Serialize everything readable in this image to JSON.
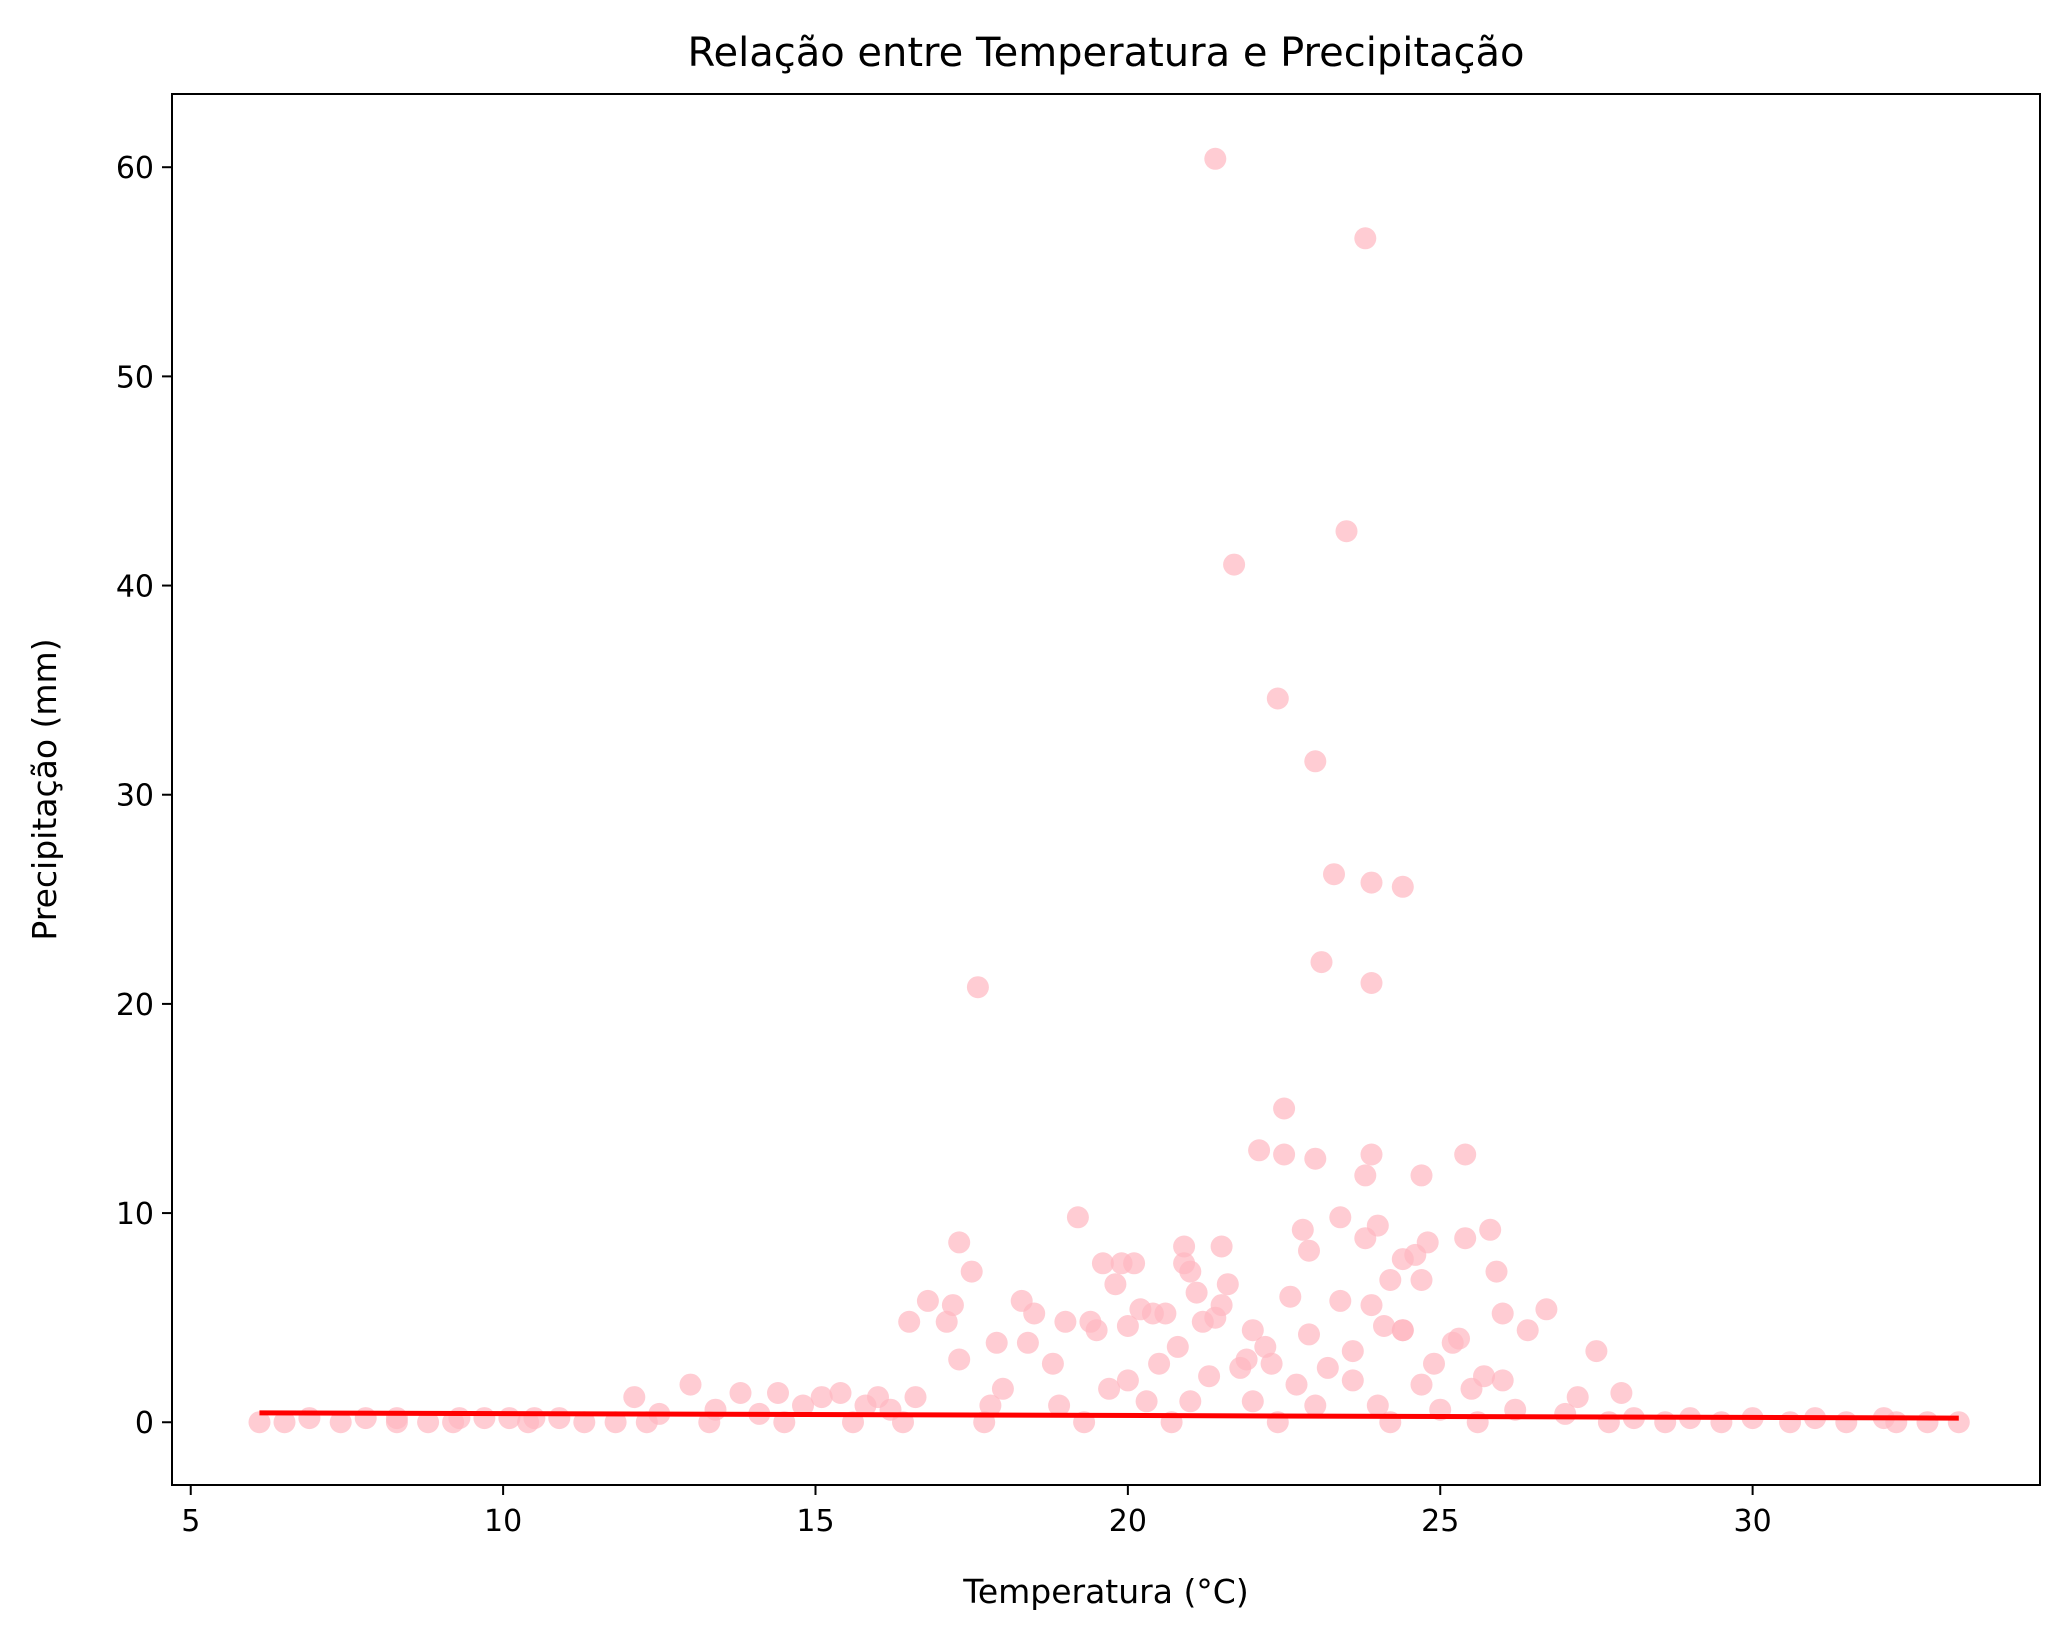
{
  "chart_data": {
    "type": "scatter",
    "title": "Relação entre Temperatura e Precipitação",
    "xlabel": "Temperatura (°C)",
    "ylabel": "Precipitação (mm)",
    "xlim": [
      4.7,
      34.6
    ],
    "ylim": [
      -3.0,
      63.5
    ],
    "xticks": [
      5,
      10,
      15,
      20,
      25,
      30
    ],
    "yticks": [
      0,
      10,
      20,
      30,
      40,
      50,
      60
    ],
    "grid": false,
    "legend": "none",
    "colors": {
      "points": "#ffb6c1",
      "trend": "#ff0000"
    },
    "series": [
      {
        "type": "scatter",
        "x": [
          21.4,
          23.8,
          23.5,
          21.7,
          22.4,
          23.0,
          23.3,
          23.9,
          24.4,
          23.1,
          23.9,
          17.6,
          22.5,
          22.1,
          22.5,
          23.0,
          23.9,
          25.4,
          23.8,
          24.7,
          19.2,
          23.4,
          22.8,
          24.0,
          25.8,
          23.8,
          24.8,
          17.3,
          22.9,
          25.4,
          20.9,
          21.5,
          24.6,
          19.6,
          19.9,
          20.1,
          24.4,
          20.9,
          21.0,
          17.5,
          25.9,
          24.7,
          24.2,
          19.8,
          21.6,
          21.1,
          22.6,
          16.8,
          18.3,
          17.2,
          23.9,
          23.4,
          21.5,
          26.0,
          26.7,
          18.5,
          16.5,
          17.1,
          24.4,
          20.6,
          20.4,
          21.2,
          20.2,
          21.4,
          19.4,
          20.0,
          26.4,
          25.3,
          22.0,
          24.4,
          24.1,
          22.9,
          19.0,
          19.5,
          23.6,
          17.9,
          20.8,
          22.2,
          18.4,
          27.5,
          17.3,
          25.2,
          26.0,
          21.9,
          13.0,
          20.5,
          22.3,
          24.9,
          23.2,
          21.8,
          18.8,
          25.7,
          27.2,
          12.1,
          27.9,
          13.8,
          14.4,
          15.4,
          15.1,
          16.0,
          16.6,
          20.0,
          18.0,
          21.3,
          23.6,
          24.7,
          19.7,
          22.7,
          15.8,
          14.8,
          13.4,
          25.5,
          6.9,
          7.8,
          8.3,
          9.3,
          9.7,
          10.1,
          10.5,
          10.9,
          12.5,
          14.1,
          16.2,
          17.8,
          18.9,
          20.3,
          21.0,
          22.0,
          23.0,
          24.0,
          25.0,
          26.2,
          27.0,
          28.1,
          29.0,
          30.0,
          31.0,
          32.1,
          33.3,
          6.1,
          6.5,
          7.4,
          8.3,
          8.8,
          9.2,
          10.4,
          11.3,
          11.8,
          12.3,
          13.3,
          14.5,
          15.6,
          16.4,
          17.7,
          19.3,
          20.7,
          22.4,
          24.2,
          25.6,
          27.7,
          28.6,
          29.5,
          30.6,
          31.5,
          32.3,
          32.8
        ],
        "y": [
          60.4,
          56.6,
          42.6,
          41.0,
          34.6,
          31.6,
          26.2,
          25.8,
          25.6,
          22.0,
          21.0,
          20.8,
          15.0,
          13.0,
          12.8,
          12.6,
          12.8,
          12.8,
          11.8,
          11.8,
          9.8,
          9.8,
          9.2,
          9.4,
          9.2,
          8.8,
          8.6,
          8.6,
          8.2,
          8.8,
          8.4,
          8.4,
          8.0,
          7.6,
          7.6,
          7.6,
          7.8,
          7.6,
          7.2,
          7.2,
          7.2,
          6.8,
          6.8,
          6.6,
          6.6,
          6.2,
          6.0,
          5.8,
          5.8,
          5.6,
          5.6,
          5.8,
          5.6,
          5.2,
          5.4,
          5.2,
          4.8,
          4.8,
          4.4,
          5.2,
          5.2,
          4.8,
          5.4,
          5.0,
          4.8,
          4.6,
          4.4,
          4.0,
          4.4,
          4.4,
          4.6,
          4.2,
          4.8,
          4.4,
          3.4,
          3.8,
          3.6,
          3.6,
          3.8,
          3.4,
          3.0,
          3.8,
          2.0,
          3.0,
          1.8,
          2.8,
          2.8,
          2.8,
          2.6,
          2.6,
          2.8,
          2.2,
          1.2,
          1.2,
          1.4,
          1.4,
          1.4,
          1.4,
          1.2,
          1.2,
          1.2,
          2.0,
          1.6,
          2.2,
          2.0,
          1.8,
          1.6,
          1.8,
          0.8,
          0.8,
          0.6,
          1.6,
          0.2,
          0.2,
          0.2,
          0.2,
          0.2,
          0.2,
          0.2,
          0.2,
          0.4,
          0.4,
          0.6,
          0.8,
          0.8,
          1.0,
          1.0,
          1.0,
          0.8,
          0.8,
          0.6,
          0.6,
          0.4,
          0.2,
          0.2,
          0.2,
          0.2,
          0.2,
          0.0,
          0.0,
          0.0,
          0.0,
          0.0,
          0.0,
          0.0,
          0.0,
          0.0,
          0.0,
          0.0,
          0.0,
          0.0,
          0.0,
          0.0,
          0.0,
          0.0,
          0.0,
          0.0,
          0.0,
          0.0,
          0.0,
          0.0,
          0.0,
          0.0,
          0.0,
          0.0,
          0.0
        ]
      },
      {
        "type": "line",
        "x": [
          6.1,
          33.3
        ],
        "y": [
          0.45,
          0.2
        ]
      }
    ]
  }
}
